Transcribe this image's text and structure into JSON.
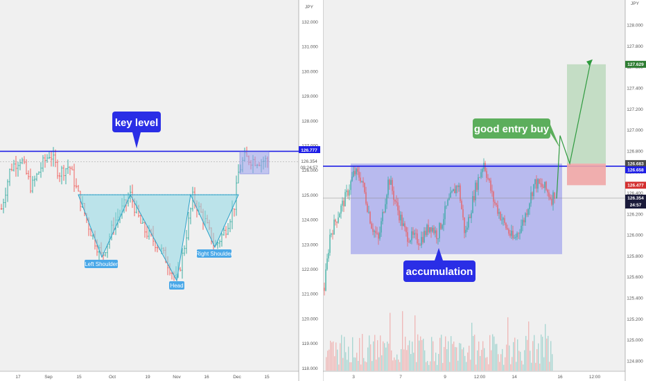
{
  "left": {
    "currency": "JPY",
    "price_ticks": [
      "132.000",
      "131.000",
      "130.000",
      "129.000",
      "128.000",
      "127.000",
      "126.000",
      "125.000",
      "124.000",
      "123.000",
      "122.000",
      "121.000",
      "120.000",
      "119.000",
      "118.000"
    ],
    "price_tick_values": [
      132,
      131,
      130,
      129,
      128,
      127,
      126,
      125,
      124,
      123,
      122,
      121,
      120,
      119,
      118
    ],
    "time_ticks": [
      "17",
      "Sep",
      "15",
      "Oct",
      "19",
      "Nov",
      "16",
      "Dec",
      "15"
    ],
    "key_level_label": "key level",
    "key_level_price": "126.777",
    "key_level_value": 126.777,
    "last_price": "126.354",
    "last_price_value": 126.354,
    "countdown": "09:24:57",
    "neckline_value": 125.02,
    "pattern_labels": {
      "left_shoulder": "Left Shoulder",
      "head": "Head",
      "right_shoulder": "Right Shoulder"
    },
    "colors": {
      "key_level": "#1e1ee6",
      "pattern_fill": "#8fd8e6",
      "pattern_line": "#2aa0c8",
      "label_bg": "#4aa8e8",
      "up": "#26a69a",
      "down": "#ef5350",
      "range_box": "#9aa0ee"
    }
  },
  "right": {
    "currency": "JPY",
    "price_ticks": [
      "128.000",
      "127.800",
      "127.600",
      "127.400",
      "127.200",
      "127.000",
      "126.800",
      "126.600",
      "126.400",
      "126.200",
      "126.000",
      "125.800",
      "125.600",
      "125.400",
      "125.200",
      "125.000",
      "124.800"
    ],
    "price_tick_values": [
      128.0,
      127.8,
      127.6,
      127.4,
      127.2,
      127.0,
      126.8,
      126.6,
      126.4,
      126.2,
      126.0,
      125.8,
      125.6,
      125.4,
      125.2,
      125.0,
      124.8
    ],
    "time_ticks": [
      "3",
      "7",
      "9",
      "12:00",
      "14",
      "16",
      "12:00"
    ],
    "target_price": "127.629",
    "target_value": 127.629,
    "entry_price": "126.683",
    "entry_value": 126.683,
    "key_level_price": "126.658",
    "key_level_value": 126.658,
    "stop_price": "126.477",
    "stop_value": 126.477,
    "last_price": "126.354",
    "last_price_value": 126.354,
    "countdown": "24:57",
    "entry_callout": "good entry buy",
    "range_label": "accumulation",
    "range_low_value": 125.82,
    "colors": {
      "key_level": "#1e1ee6",
      "accumulation_box": "#9a9cec",
      "profit_zone": "#bcd9bd",
      "stop_zone": "#f0a6a6",
      "entry_callout": "#5cae5c",
      "range_callout": "#2a2ee6",
      "arrow": "#2e9a3e",
      "up": "#26a69a",
      "down": "#ef5350"
    }
  },
  "chart_data": [
    {
      "type": "candlestick",
      "title": "",
      "ylabel": "JPY",
      "x_ticks": [
        "17",
        "Sep",
        "15",
        "Oct",
        "19",
        "Nov",
        "16",
        "Dec",
        "15"
      ],
      "ylim": [
        117.8,
        132.6
      ],
      "series": [
        {
          "name": "horizontal level",
          "value": 126.777
        },
        {
          "name": "neckline",
          "value": 125.02
        },
        {
          "name": "pattern pivots",
          "points": [
            {
              "label": "Left Shoulder",
              "y": 122.5
            },
            {
              "label": "Head",
              "y": 121.55
            },
            {
              "label": "Right Shoulder",
              "y": 122.9
            }
          ]
        }
      ],
      "annotations": [
        "key level",
        "Left Shoulder",
        "Head",
        "Right Shoulder"
      ]
    },
    {
      "type": "candlestick",
      "title": "",
      "ylabel": "JPY",
      "x_ticks": [
        "3",
        "7",
        "9",
        "12:00",
        "14",
        "16",
        "12:00"
      ],
      "ylim": [
        124.75,
        128.05
      ],
      "series": [
        {
          "name": "range",
          "low": 125.82,
          "high": 126.68
        },
        {
          "name": "entry",
          "value": 126.683
        },
        {
          "name": "target",
          "value": 127.629
        },
        {
          "name": "stop",
          "value": 126.477
        },
        {
          "name": "last",
          "value": 126.354
        }
      ],
      "annotations": [
        "good entry buy",
        "accumulation"
      ]
    }
  ]
}
